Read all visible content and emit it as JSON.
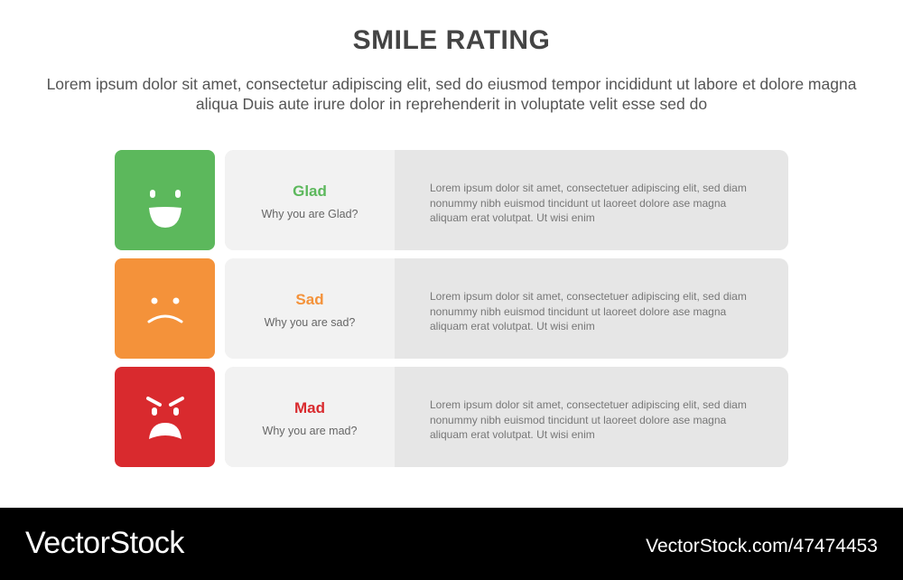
{
  "title": "SMILE RATING",
  "subtitle": "Lorem ipsum dolor sit amet, consectetur adipiscing elit, sed do eiusmod tempor incididunt ut labore et dolore magna aliqua Duis aute irure dolor in reprehenderit in voluptate velit esse sed do",
  "rows": [
    {
      "label": "Glad",
      "question": "Why you are Glad?",
      "description": "Lorem ipsum dolor sit amet, consectetuer adipiscing elit, sed diam nonummy nibh euismod tincidunt ut laoreet dolore ase magna aliquam erat volutpat. Ut wisi enim",
      "icon": "happy-face-icon",
      "color": "#5cb85c"
    },
    {
      "label": "Sad",
      "question": "Why you are sad?",
      "description": "Lorem ipsum dolor sit amet, consectetuer adipiscing elit, sed diam nonummy nibh euismod tincidunt ut laoreet dolore ase magna aliquam erat volutpat. Ut wisi enim",
      "icon": "sad-face-icon",
      "color": "#f4923a"
    },
    {
      "label": "Mad",
      "question": "Why you are mad?",
      "description": "Lorem ipsum dolor sit amet, consectetuer adipiscing elit, sed diam nonummy nibh euismod tincidunt ut laoreet dolore ase magna aliquam erat volutpat. Ut wisi enim",
      "icon": "angry-face-icon",
      "color": "#d92a2e"
    }
  ],
  "footer": {
    "brand": "VectorStock",
    "url": "VectorStock.com/47474453"
  }
}
